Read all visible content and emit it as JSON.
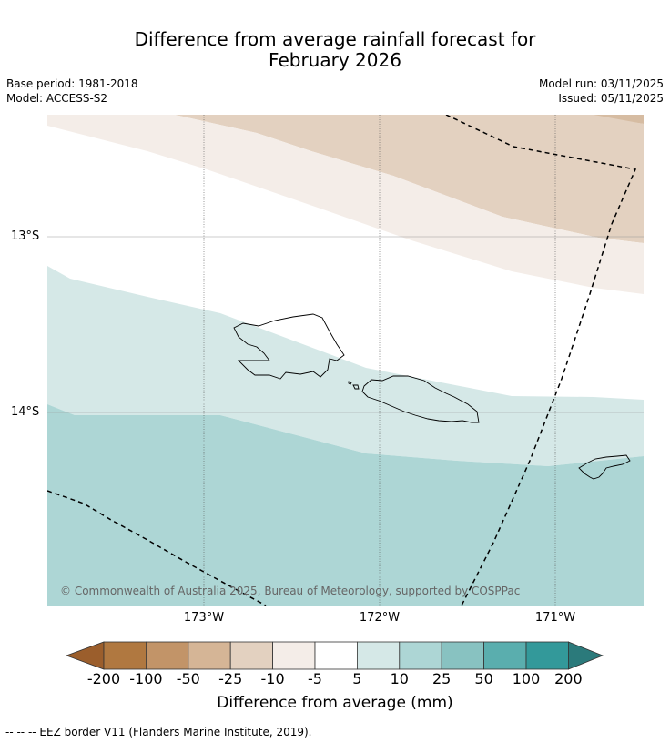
{
  "title_line1": "Difference from average rainfall forecast for",
  "title_line2": "February 2026",
  "base_period": "Base period: 1981-2018",
  "model": "Model: ACCESS-S2",
  "model_run": "Model run: 03/11/2025",
  "issued": "Issued: 05/11/2025",
  "map": {
    "lat_labels": [
      "13°S",
      "14°S"
    ],
    "lon_labels": [
      "173°W",
      "172°W",
      "171°W"
    ],
    "copyright": "© Commonwealth of Australia 2025, Bureau of Meteorology, supported by COSPPac"
  },
  "colorbar": {
    "labels": [
      "-200",
      "-100",
      "-50",
      "-25",
      "-10",
      "-5",
      "5",
      "10",
      "25",
      "50",
      "100",
      "200"
    ],
    "colors": [
      "#9b5e2c",
      "#b07840",
      "#c29468",
      "#d5b596",
      "#e3d1c0",
      "#f4ede8",
      "#ffffff",
      "#d5e8e7",
      "#add6d5",
      "#88c2c1",
      "#5aaeae",
      "#33999a",
      "#2b7a7b"
    ],
    "title": "Difference from average (mm)"
  },
  "footer": "--  --  -- EEZ border V11 (Flanders Marine Institute, 2019)."
}
